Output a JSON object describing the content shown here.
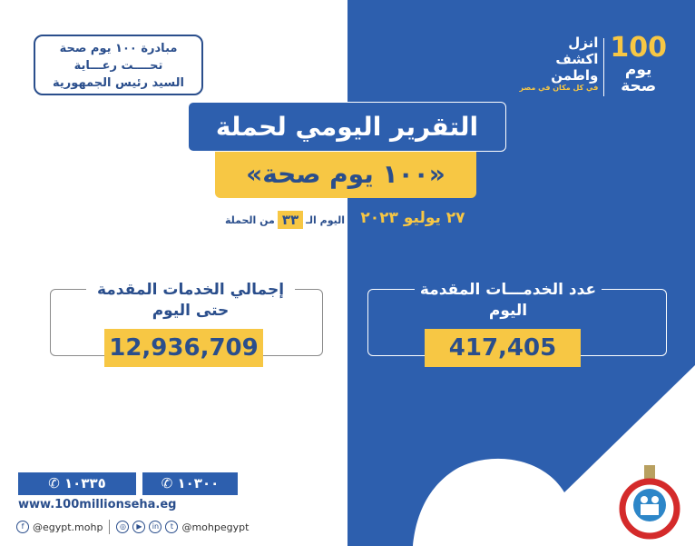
{
  "colors": {
    "blue": "#2d5fae",
    "yellow": "#f7c744",
    "dark_text": "#2a4e8c"
  },
  "patronage": {
    "lines": [
      "مبادرة ١٠٠ يوم صحة",
      "تحــــت رعـــاية",
      "السيد رئيس الجمهورية"
    ]
  },
  "logo": {
    "number": "100",
    "name_line1": "يوم",
    "name_line2": "صحة",
    "slogan": [
      "انزل",
      "اكشف",
      "واطمن"
    ],
    "subslogan": "في كل مكان في مصر"
  },
  "header": {
    "title": "التقرير اليومي لحملة",
    "subtitle": "«١٠٠ يوم صحة»"
  },
  "date": "٢٧ يوليو ٢٠٢٣",
  "campaign_day": {
    "prefix": "اليوم الـ",
    "number": "٣٣",
    "suffix": "من الحملة"
  },
  "stats": {
    "total": {
      "label_line1": "إجمالي الخدمات المقدمة",
      "label_line2": "حتى اليوم",
      "value": "12,936,709"
    },
    "today": {
      "label_line1": "عدد الخدمـــات المقدمة",
      "label_line2": "اليوم",
      "value": "417,405"
    }
  },
  "footer": {
    "phones": [
      {
        "icon": "phone-icon",
        "number": "١٠٣٣٥"
      },
      {
        "icon": "phone-icon",
        "number": "١٠٣٠٠"
      }
    ],
    "website": "www.100millionseha.eg",
    "facebook": "@egypt.mohp",
    "other_socials": "@mohpegypt",
    "social_icons": [
      "facebook-icon",
      "instagram-icon",
      "youtube-icon",
      "linkedin-icon",
      "twitter-icon"
    ]
  },
  "emblem": {
    "icon": "ministry-of-health-emblem"
  }
}
